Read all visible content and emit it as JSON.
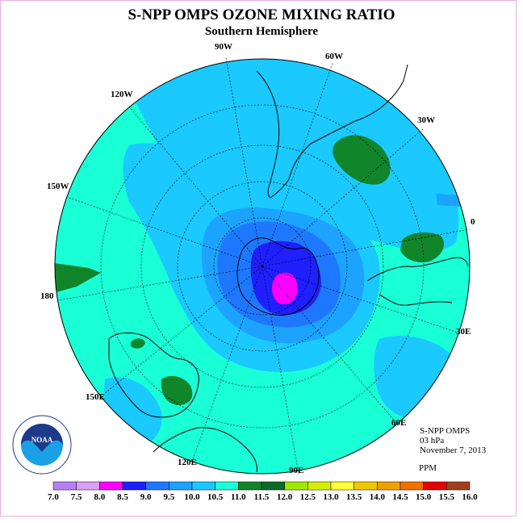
{
  "header": {
    "title": "S-NPP OMPS OZONE MIXING RATIO",
    "subtitle": "Southern Hemisphere"
  },
  "map": {
    "projection": "south polar stereographic",
    "longitude_labels": [
      "90W",
      "60W",
      "30W",
      "0",
      "30E",
      "60E",
      "90E",
      "120E",
      "150E",
      "180",
      "150W",
      "120W"
    ],
    "colors": {
      "ocean_level_11_0": "#19ffd6",
      "level_10_5": "#19c9ff",
      "level_10_0": "#1ca3ff",
      "level_9_5": "#1e78ff",
      "level_9_0": "#1f1fff",
      "level_8_5": "#ff00ff",
      "level_11_5": "#10852a"
    }
  },
  "info": {
    "instrument": "S-NPP OMPS",
    "pressure": "03 hPa",
    "date": "November 7, 2013",
    "units": "PPM"
  },
  "colorbar": {
    "labels": [
      "7.0",
      "7.5",
      "8.0",
      "8.5",
      "9.0",
      "9.5",
      "10.0",
      "10.5",
      "11.0",
      "11.5",
      "12.0",
      "12.5",
      "13.0",
      "13.5",
      "14.0",
      "14.5",
      "15.0",
      "15.5",
      "16.0"
    ],
    "colors": [
      "#b87ff5",
      "#d9a0f5",
      "#ff00ff",
      "#1f1fff",
      "#1e78ff",
      "#1ca3ff",
      "#19c9ff",
      "#19ffd6",
      "#10852a",
      "#0a6a26",
      "#a3e600",
      "#d4f000",
      "#ffff33",
      "#f0c800",
      "#f0a000",
      "#f07000",
      "#e60000",
      "#a04020"
    ]
  },
  "logo": {
    "text": "NOAA",
    "ring_text": "NATIONAL OCEANIC AND ATMOSPHERIC ADMINISTRATION · U.S. DEPARTMENT OF COMMERCE"
  }
}
